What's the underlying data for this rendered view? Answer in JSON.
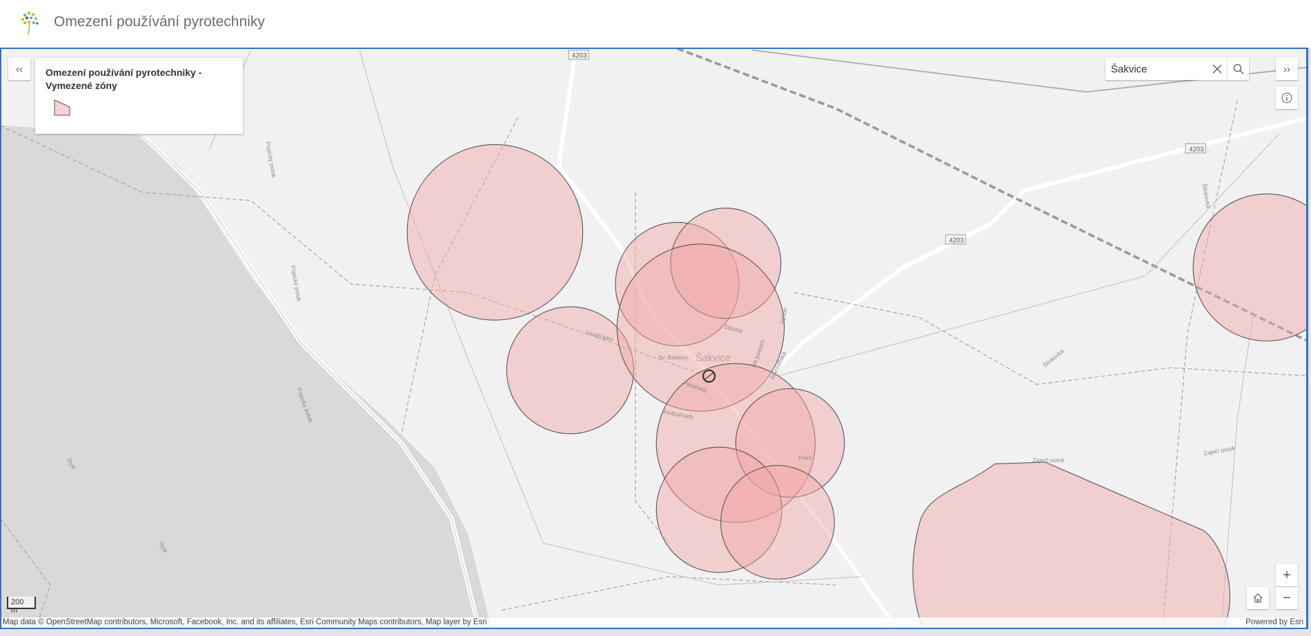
{
  "header": {
    "title": "Omezení používání pyrotechniky",
    "logo_icon": "tree-logo-icon"
  },
  "legend": {
    "title": "Omezení používání pyrotechniky - Vymezené zóny",
    "collapse_label": "‹‹",
    "symbol_color": "#f8d3d3"
  },
  "search": {
    "value": "Šakvice",
    "clear_icon": "close-icon",
    "search_icon": "search-icon"
  },
  "controls": {
    "expand_label": "››",
    "info_icon": "info-icon",
    "zoom_in": "+",
    "zoom_out": "−",
    "home_icon": "home-icon"
  },
  "scalebar": {
    "label": "200 m"
  },
  "attribution": {
    "text": "Map data © OpenStreetMap contributors, Microsoft, Facebook, Inc. and its affiliates, Esri Community Maps contributors, Map layer by Esri",
    "powered": "Powered by Esri"
  },
  "map": {
    "zone_color": "#f2a7a7",
    "labels": {
      "town": "Šakvice",
      "road1": "4203",
      "road2": "4203",
      "road3": "4203",
      "river1": "Dyje",
      "river2": "Dyje",
      "stream1": "Popický potok",
      "stream2": "Popický potok",
      "stream3": "Popický potok",
      "stream4": "Zaječí potok",
      "stream5": "Zaječí potok",
      "stream6": "Šlinkovka",
      "stream7": "Šlinkovka",
      "street1": "Starovičská",
      "street2": "Výhon",
      "street3": "Pekařská",
      "street4": "Podzahrady",
      "street5": "Dlouhá",
      "street6": "Na pustých",
      "street7": "Vinohradní",
      "street8": "Sv. Barbory",
      "street9": "Polní"
    }
  }
}
